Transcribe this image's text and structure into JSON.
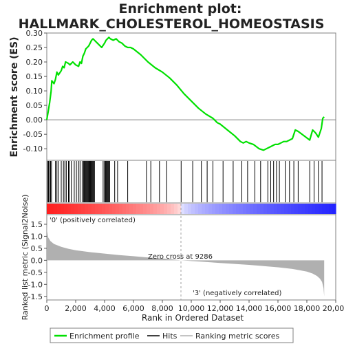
{
  "title_line1": "Enrichment plot:",
  "title_line2": "HALLMARK_CHOLESTEROL_HOMEOSTASIS",
  "colors": {
    "es_line": "#00e000",
    "hits": "#000000",
    "metric_fill": "#b0b0b0",
    "positive_label": "#ff0000",
    "negative_label": "#0000ff"
  },
  "chart_data": [
    {
      "type": "line",
      "name": "enrichment-profile",
      "ylabel": "Enrichment score (ES)",
      "xlim": [
        0,
        20000
      ],
      "ylim": [
        -0.14,
        0.3
      ],
      "yticks": [
        -0.1,
        -0.05,
        0.0,
        0.05,
        0.1,
        0.15,
        0.2,
        0.25,
        0.3
      ],
      "ytick_labels": [
        "-0.10",
        "-0.05",
        "0.00",
        "0.05",
        "0.10",
        "0.15",
        "0.20",
        "0.25",
        "0.30"
      ],
      "grid": false,
      "series": [
        {
          "x": [
            0,
            120,
            200,
            300,
            350,
            500,
            600,
            700,
            800,
            1000,
            1100,
            1200,
            1300,
            1500,
            1600,
            1800,
            2000,
            2200,
            2300,
            2400,
            2500,
            2600,
            2700,
            2800,
            2900,
            3000,
            3100,
            3200,
            3300,
            3500,
            3800,
            4000,
            4100,
            4200,
            4300,
            4400,
            4600,
            4800,
            5000,
            5200,
            5400,
            5600,
            5800,
            6000,
            6500,
            7000,
            7500,
            8000,
            8500,
            9000,
            9500,
            10000,
            10500,
            11000,
            11500,
            11800,
            12000,
            12500,
            13000,
            13400,
            13600,
            13800,
            14000,
            14300,
            14700,
            15000,
            15200,
            15400,
            15600,
            15800,
            16000,
            16200,
            16400,
            16600,
            16800,
            17000,
            17200,
            17400,
            17800,
            18200,
            18400,
            18600,
            18800,
            19000,
            19100,
            19200
          ],
          "y": [
            0.0,
            0.035,
            0.06,
            0.1,
            0.135,
            0.125,
            0.14,
            0.165,
            0.155,
            0.17,
            0.185,
            0.18,
            0.2,
            0.195,
            0.19,
            0.2,
            0.19,
            0.185,
            0.2,
            0.195,
            0.22,
            0.23,
            0.245,
            0.25,
            0.255,
            0.265,
            0.275,
            0.28,
            0.275,
            0.265,
            0.25,
            0.265,
            0.275,
            0.28,
            0.285,
            0.28,
            0.275,
            0.28,
            0.27,
            0.265,
            0.255,
            0.25,
            0.25,
            0.245,
            0.225,
            0.2,
            0.18,
            0.165,
            0.145,
            0.12,
            0.09,
            0.065,
            0.04,
            0.02,
            0.005,
            -0.01,
            -0.015,
            -0.035,
            -0.055,
            -0.075,
            -0.08,
            -0.075,
            -0.08,
            -0.085,
            -0.1,
            -0.105,
            -0.1,
            -0.095,
            -0.09,
            -0.085,
            -0.085,
            -0.08,
            -0.075,
            -0.075,
            -0.07,
            -0.065,
            -0.035,
            -0.04,
            -0.055,
            -0.07,
            -0.035,
            -0.045,
            -0.06,
            -0.03,
            0.005,
            0.01
          ]
        }
      ]
    },
    {
      "type": "scatter",
      "name": "hits",
      "xlim": [
        0,
        20000
      ],
      "hit_positions": [
        60,
        120,
        200,
        260,
        330,
        600,
        700,
        800,
        1000,
        1150,
        1250,
        1350,
        1500,
        1550,
        1700,
        1900,
        2050,
        2200,
        2300,
        2450,
        2550,
        2600,
        2650,
        2700,
        2750,
        2800,
        2850,
        2900,
        2950,
        3000,
        3050,
        3100,
        3150,
        3200,
        3250,
        3300,
        3900,
        4000,
        4050,
        4100,
        4150,
        4200,
        4250,
        4300,
        4350,
        4700,
        4900,
        5600,
        6900,
        7200,
        7800,
        8300,
        9300,
        10100,
        10700,
        11100,
        11500,
        12200,
        12900,
        13500,
        13900,
        14400,
        14800,
        15300,
        15500,
        15700,
        15900,
        16100,
        16500,
        16800,
        17100,
        17400,
        18200,
        18500,
        18800,
        19050
      ]
    },
    {
      "type": "area",
      "name": "ranked-list-metric",
      "ylabel": "Ranked list metric (Signal2Noise)",
      "xlabel": "Rank in Ordered Dataset",
      "xlim": [
        0,
        20000
      ],
      "ylim": [
        -1.65,
        1.9
      ],
      "xticks": [
        0,
        2000,
        4000,
        6000,
        8000,
        10000,
        12000,
        14000,
        16000,
        18000,
        20000
      ],
      "xtick_labels": [
        "0",
        "2,000",
        "4,000",
        "6,000",
        "8,000",
        "10,000",
        "12,000",
        "14,000",
        "16,000",
        "18,000",
        "20,000"
      ],
      "yticks": [
        -1.5,
        -1.0,
        -0.5,
        0.0,
        0.5,
        1.0,
        1.5
      ],
      "ytick_labels": [
        "-1.5",
        "-1.0",
        "-0.5",
        "0.0",
        "0.5",
        "1.0",
        "1.5"
      ],
      "series": [
        {
          "x": [
            0,
            30,
            100,
            250,
            500,
            1000,
            1500,
            2000,
            3000,
            4000,
            5000,
            6000,
            7000,
            8000,
            9000,
            9286,
            10000,
            11000,
            12000,
            13000,
            14000,
            15000,
            16000,
            17000,
            17500,
            18000,
            18400,
            18700,
            18900,
            19050,
            19150,
            19200
          ],
          "y": [
            1.65,
            1.2,
            0.95,
            0.8,
            0.68,
            0.56,
            0.48,
            0.42,
            0.34,
            0.28,
            0.22,
            0.17,
            0.12,
            0.08,
            0.02,
            0.0,
            -0.03,
            -0.07,
            -0.11,
            -0.15,
            -0.19,
            -0.24,
            -0.29,
            -0.36,
            -0.41,
            -0.47,
            -0.55,
            -0.65,
            -0.76,
            -0.9,
            -1.15,
            -1.5
          ]
        }
      ],
      "zero_cross_rank": 9286,
      "annotations": {
        "zero_cross": "Zero cross at 9286",
        "positive": "'0' (positively correlated)",
        "negative": "'3' (negatively correlated)"
      }
    }
  ],
  "legend": {
    "items": [
      {
        "label": "Enrichment profile",
        "color": "#00e000"
      },
      {
        "label": "Hits",
        "color": "#000000"
      },
      {
        "label": "Ranking metric scores",
        "color": "#b0b0b0"
      }
    ]
  }
}
